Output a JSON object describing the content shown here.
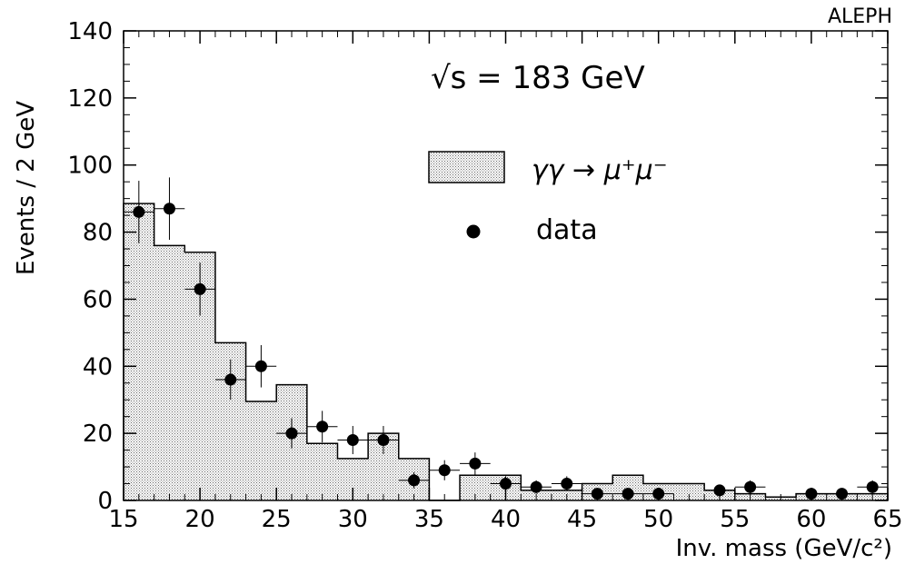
{
  "experiment_label": "ALEPH",
  "energy_label": "√s = 183 GeV",
  "legend": {
    "mc_label": "γγ → μ⁺μ⁻",
    "data_label": "data"
  },
  "chart_data": {
    "type": "histogram",
    "xlabel": "Inv. mass (GeV/c²)",
    "ylabel": "Events / 2 GeV",
    "xlim": [
      15,
      65
    ],
    "ylim": [
      0,
      140
    ],
    "x_ticks": [
      15,
      20,
      25,
      30,
      35,
      40,
      45,
      50,
      55,
      60,
      65
    ],
    "y_ticks": [
      0,
      20,
      40,
      60,
      80,
      100,
      120,
      140
    ],
    "grid": false,
    "legend_position": "upper-right",
    "series": [
      {
        "name": "γγ → μ⁺μ⁻",
        "kind": "histogram",
        "bin_edges": [
          15,
          17,
          19,
          21,
          23,
          25,
          27,
          29,
          31,
          33,
          35,
          37,
          39,
          41,
          43,
          45,
          47,
          49,
          51,
          53,
          55,
          57,
          59,
          61,
          63,
          65
        ],
        "values": [
          88.5,
          76,
          74,
          47,
          29.5,
          34.5,
          17,
          12.5,
          20,
          12.5,
          0,
          7.5,
          7.5,
          3,
          3,
          5,
          7.5,
          5,
          5,
          3,
          2,
          1,
          2,
          2,
          2
        ]
      },
      {
        "name": "data",
        "kind": "points",
        "x": [
          16,
          18,
          20,
          22,
          24,
          26,
          28,
          30,
          32,
          34,
          36,
          38,
          40,
          42,
          44,
          46,
          48,
          50,
          54,
          56,
          60,
          62,
          64
        ],
        "y": [
          86,
          87,
          63,
          36,
          40,
          20,
          22,
          18,
          18,
          6,
          9,
          11,
          5,
          4,
          5,
          2,
          2,
          2,
          3,
          4,
          2,
          2,
          4
        ],
        "yerr": [
          9.3,
          9.3,
          7.9,
          6.0,
          6.3,
          4.5,
          4.7,
          4.2,
          4.2,
          2.4,
          3.0,
          3.3,
          2.2,
          2.0,
          2.2,
          1.4,
          1.4,
          1.4,
          1.7,
          2.0,
          1.4,
          1.4,
          2.0
        ],
        "xerr": 1
      }
    ]
  },
  "colors": {
    "axis": "#000000",
    "fill_dot": "#6a6a6a",
    "fill_bg": "#ffffff",
    "marker": "#000000"
  }
}
